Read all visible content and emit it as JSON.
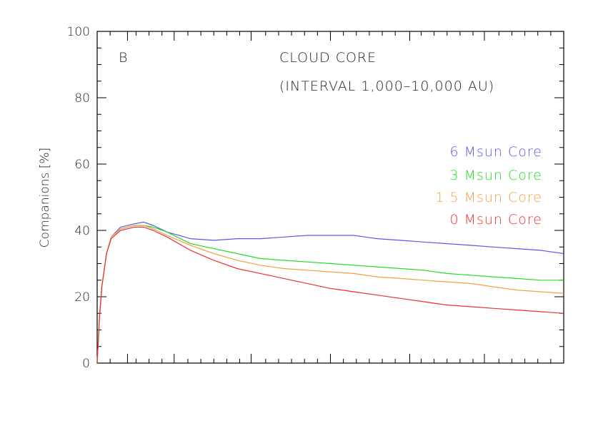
{
  "chart_data": {
    "type": "line",
    "panel_label": "B",
    "title": "CLOUD CORE",
    "subtitle": "(INTERVAL 1,000–10,000 AU)",
    "ylabel": "Companions [%]",
    "xlabel": "",
    "ylim": [
      0,
      100
    ],
    "yticks": [
      0,
      20,
      40,
      60,
      80,
      100
    ],
    "xlim": [
      0,
      1
    ],
    "x_major_ticks": [
      0.065,
      0.165,
      0.33,
      0.5,
      0.67,
      0.83
    ],
    "grid": false,
    "legend_position": "right",
    "series": [
      {
        "name": "6 Msun Core",
        "color": "#5a5ae6",
        "x": [
          0,
          0.005,
          0.01,
          0.02,
          0.03,
          0.05,
          0.08,
          0.1,
          0.12,
          0.15,
          0.2,
          0.25,
          0.3,
          0.35,
          0.4,
          0.45,
          0.5,
          0.55,
          0.6,
          0.65,
          0.7,
          0.75,
          0.8,
          0.85,
          0.9,
          0.95,
          1.0
        ],
        "values": [
          0,
          14,
          23,
          33,
          38,
          41,
          42,
          42.5,
          41.5,
          39.5,
          37.5,
          37,
          37.5,
          37.5,
          38,
          38.5,
          38.5,
          38.5,
          37.5,
          37,
          36.5,
          36,
          35.5,
          35,
          34.5,
          34,
          33
        ]
      },
      {
        "name": "3 Msun Core",
        "color": "#22dd22",
        "x": [
          0,
          0.005,
          0.01,
          0.02,
          0.03,
          0.05,
          0.08,
          0.1,
          0.12,
          0.15,
          0.2,
          0.25,
          0.3,
          0.35,
          0.4,
          0.45,
          0.5,
          0.55,
          0.6,
          0.65,
          0.7,
          0.75,
          0.8,
          0.85,
          0.9,
          0.95,
          1.0
        ],
        "values": [
          0,
          14,
          23,
          33,
          38,
          40.5,
          41.5,
          41.5,
          41,
          39.5,
          36,
          34.5,
          33,
          31.5,
          31,
          30.5,
          30,
          29.5,
          29,
          28.5,
          28,
          27,
          26.5,
          26,
          25.5,
          25,
          25
        ]
      },
      {
        "name": "1.5 Msun Core",
        "color": "#f2a040",
        "x": [
          0,
          0.005,
          0.01,
          0.02,
          0.03,
          0.05,
          0.08,
          0.1,
          0.12,
          0.15,
          0.2,
          0.25,
          0.3,
          0.35,
          0.4,
          0.45,
          0.5,
          0.55,
          0.6,
          0.65,
          0.7,
          0.75,
          0.8,
          0.85,
          0.9,
          0.95,
          1.0
        ],
        "values": [
          0,
          14,
          23,
          33,
          38,
          40.5,
          41.5,
          41.5,
          40.5,
          38.5,
          35.5,
          33,
          31,
          29.5,
          28.5,
          28,
          27.5,
          27,
          26,
          25.5,
          25,
          24.5,
          24,
          23,
          22,
          21.5,
          21
        ]
      },
      {
        "name": "0 Msun Core",
        "color": "#ee3030",
        "x": [
          0,
          0.005,
          0.01,
          0.02,
          0.03,
          0.05,
          0.08,
          0.1,
          0.12,
          0.15,
          0.2,
          0.25,
          0.3,
          0.35,
          0.4,
          0.45,
          0.5,
          0.55,
          0.6,
          0.65,
          0.7,
          0.75,
          0.8,
          0.85,
          0.9,
          0.95,
          1.0
        ],
        "values": [
          0,
          14,
          23,
          33,
          37.5,
          40,
          41,
          41,
          40,
          38,
          34,
          31,
          28.5,
          27,
          25.5,
          24,
          22.5,
          21.5,
          20.5,
          19.5,
          18.5,
          17.5,
          17,
          16.5,
          16,
          15.5,
          15
        ]
      }
    ]
  }
}
